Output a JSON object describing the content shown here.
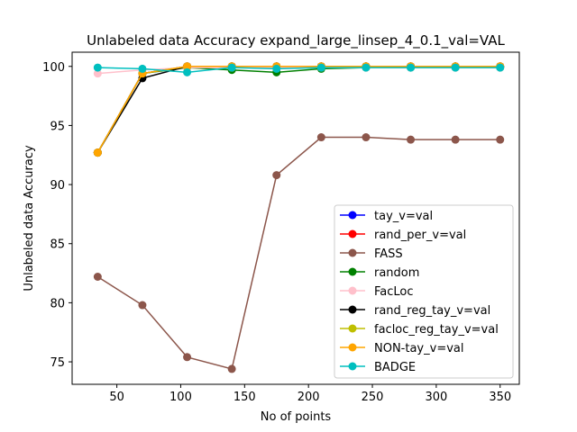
{
  "chart_data": {
    "type": "line",
    "title": "Unlabeled data Accuracy expand_large_linsep_4_0.1_val=VAL",
    "xlabel": "No of points",
    "ylabel": "Unlabeled data Accuracy",
    "xlim": [
      15,
      365
    ],
    "ylim": [
      73.1,
      101.2
    ],
    "xticks": [
      50,
      100,
      150,
      200,
      250,
      300,
      350
    ],
    "yticks": [
      75,
      80,
      85,
      90,
      95,
      100
    ],
    "grid": false,
    "legend_position": "lower-right",
    "x": [
      35,
      70,
      105,
      140,
      175,
      210,
      245,
      280,
      315,
      350
    ],
    "series": [
      {
        "name": "tay_v=val",
        "color": "#0000ff",
        "values": [
          92.7,
          99.4,
          100.0,
          100.0,
          100.0,
          100.0,
          100.0,
          100.0,
          100.0,
          100.0
        ]
      },
      {
        "name": "rand_per_v=val",
        "color": "#ff0000",
        "values": [
          92.7,
          99.4,
          100.0,
          100.0,
          100.0,
          100.0,
          100.0,
          100.0,
          100.0,
          100.0
        ]
      },
      {
        "name": "FASS",
        "color": "#8c564b",
        "values": [
          82.2,
          79.8,
          75.4,
          74.4,
          90.8,
          94.0,
          94.0,
          93.8,
          93.8,
          93.8
        ]
      },
      {
        "name": "random",
        "color": "#008000",
        "values": [
          92.7,
          99.4,
          99.9,
          99.7,
          99.5,
          99.8,
          99.9,
          99.9,
          99.9,
          99.9
        ]
      },
      {
        "name": "FacLoc",
        "color": "#ffc0cb",
        "values": [
          99.4,
          99.7,
          99.9,
          99.9,
          99.9,
          99.9,
          99.9,
          99.9,
          99.9,
          99.9
        ]
      },
      {
        "name": "rand_reg_tay_v=val",
        "color": "#000000",
        "values": [
          92.7,
          99.0,
          100.0,
          100.0,
          100.0,
          100.0,
          100.0,
          100.0,
          100.0,
          100.0
        ]
      },
      {
        "name": "facloc_reg_tay_v=val",
        "color": "#bfbf00",
        "values": [
          92.7,
          99.4,
          100.0,
          100.0,
          100.0,
          100.0,
          100.0,
          100.0,
          100.0,
          100.0
        ]
      },
      {
        "name": "NON-tay_v=val",
        "color": "#ffa500",
        "values": [
          92.7,
          99.4,
          100.0,
          100.0,
          100.0,
          100.0,
          100.0,
          100.0,
          100.0,
          100.0
        ]
      },
      {
        "name": "BADGE",
        "color": "#00bfbf",
        "values": [
          99.9,
          99.8,
          99.5,
          99.9,
          99.8,
          99.9,
          99.9,
          99.9,
          99.9,
          99.9
        ]
      }
    ]
  }
}
